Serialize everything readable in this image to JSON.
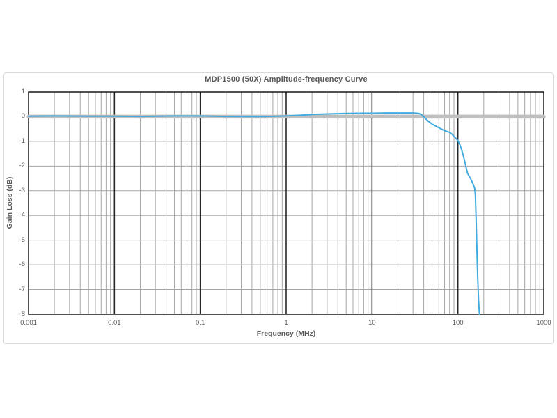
{
  "window": {
    "background": "#ffffff",
    "panel_border": "#d9d9d9"
  },
  "chart_data": {
    "type": "line",
    "title": "MDP1500 (50X) Amplitude-frequency Curve",
    "xlabel": "Frequency (MHz)",
    "ylabel": "Gain Loss (dB)",
    "x_scale": "log",
    "xlim": [
      0.001,
      1000
    ],
    "ylim": [
      -8,
      1
    ],
    "x_tick_values": [
      0.001,
      0.01,
      0.1,
      1,
      10,
      100,
      1000
    ],
    "x_tick_labels": [
      "0.001",
      "0.01",
      "0.1",
      "1",
      "10",
      "100",
      "1000"
    ],
    "y_tick_values": [
      1,
      0,
      -1,
      -2,
      -3,
      -4,
      -5,
      -6,
      -7,
      -8
    ],
    "y_tick_labels": [
      "1",
      "0",
      "-1",
      "-2",
      "-3",
      "-4",
      "-5",
      "-6",
      "-7",
      "-8"
    ],
    "legend": "none",
    "grid": {
      "minor_vertical_log": true,
      "horizontal_major": true,
      "minor_color": "#a6a6a6",
      "horizontal_color": "#a6a6a6",
      "major_color": "#262626",
      "border_color": "#262626",
      "text_color": "#595959"
    },
    "series": [
      {
        "name": "zero-reference-line",
        "color": "#bfbfbf",
        "stroke_width": 5.5,
        "points": [
          [
            0.001,
            0
          ],
          [
            1000,
            0
          ]
        ]
      },
      {
        "name": "gain-curve",
        "color": "#41aadf",
        "stroke_width": 2,
        "points": [
          [
            0.001,
            0.02
          ],
          [
            0.002,
            0.03
          ],
          [
            0.005,
            0.02
          ],
          [
            0.01,
            0.02
          ],
          [
            0.02,
            0.01
          ],
          [
            0.05,
            0.03
          ],
          [
            0.1,
            0.03
          ],
          [
            0.2,
            0.01
          ],
          [
            0.5,
            0.0
          ],
          [
            1,
            0.03
          ],
          [
            1.5,
            0.06
          ],
          [
            2,
            0.09
          ],
          [
            3,
            0.11
          ],
          [
            5,
            0.13
          ],
          [
            8,
            0.14
          ],
          [
            10,
            0.14
          ],
          [
            15,
            0.15
          ],
          [
            20,
            0.15
          ],
          [
            30,
            0.15
          ],
          [
            35,
            0.13
          ],
          [
            38,
            0.08
          ],
          [
            40,
            0.0
          ],
          [
            45,
            -0.18
          ],
          [
            50,
            -0.3
          ],
          [
            55,
            -0.38
          ],
          [
            60,
            -0.45
          ],
          [
            70,
            -0.57
          ],
          [
            80,
            -0.64
          ],
          [
            85,
            -0.7
          ],
          [
            90,
            -0.8
          ],
          [
            95,
            -0.88
          ],
          [
            100,
            -0.97
          ],
          [
            105,
            -1.12
          ],
          [
            110,
            -1.32
          ],
          [
            115,
            -1.55
          ],
          [
            120,
            -1.8
          ],
          [
            125,
            -2.08
          ],
          [
            130,
            -2.3
          ],
          [
            140,
            -2.5
          ],
          [
            150,
            -2.72
          ],
          [
            157,
            -2.9
          ],
          [
            160,
            -3.2
          ],
          [
            163,
            -4.1
          ],
          [
            166,
            -5.2
          ],
          [
            170,
            -6.5
          ],
          [
            174,
            -7.4
          ],
          [
            178,
            -8
          ]
        ]
      }
    ]
  }
}
